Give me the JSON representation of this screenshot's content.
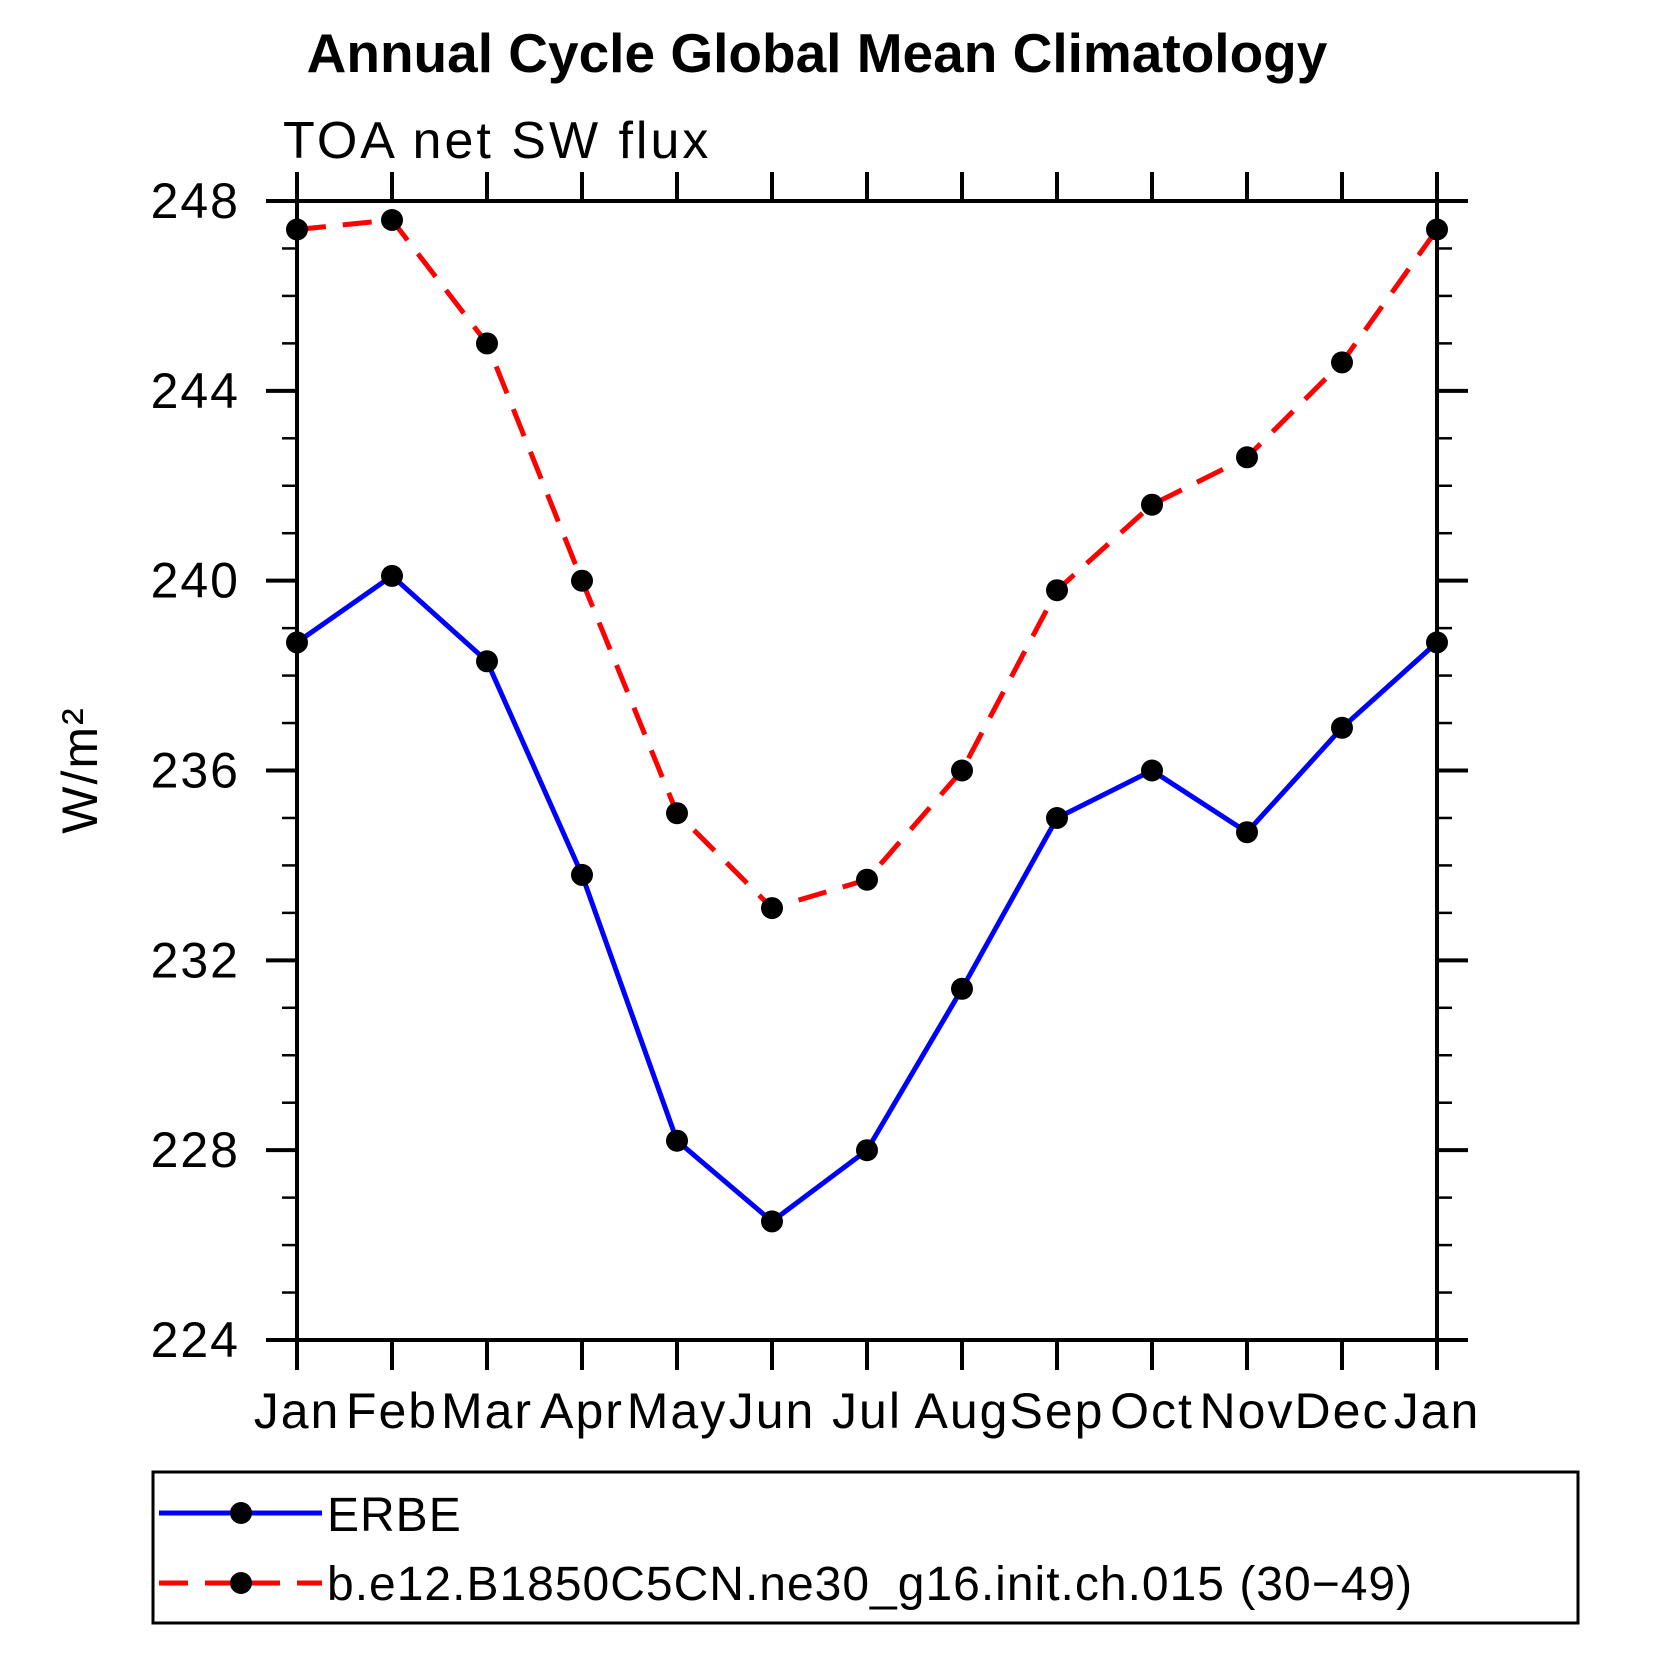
{
  "page": {
    "background": "#ffffff",
    "text_color": "#000000"
  },
  "chart_data": {
    "type": "line",
    "title": "Annual Cycle Global Mean Climatology",
    "subtitle": "TOA net SW flux",
    "xlabel": "",
    "ylabel": "W/m²",
    "categories": [
      "Jan",
      "Feb",
      "Mar",
      "Apr",
      "May",
      "Jun",
      "Jul",
      "Aug",
      "Sep",
      "Oct",
      "Nov",
      "Dec",
      "Jan"
    ],
    "ylim": [
      224,
      248
    ],
    "ymajor_step": 4,
    "yminor_step": 1,
    "grid": false,
    "legend_position": "bottom",
    "frame_color": "#000000",
    "series": [
      {
        "name": "ERBE",
        "color": "#0000ff",
        "line_style": "solid",
        "marker": "circle",
        "marker_color": "#000000",
        "values": [
          238.7,
          240.1,
          238.3,
          233.8,
          228.2,
          226.5,
          228.0,
          231.4,
          235.0,
          236.0,
          234.7,
          236.9,
          238.7
        ]
      },
      {
        "name": "b.e12.B1850C5CN.ne30_g16.init.ch.015 (30−49)",
        "color": "#ff0000",
        "line_style": "dashed",
        "marker": "circle",
        "marker_color": "#000000",
        "values": [
          247.4,
          247.6,
          245.0,
          240.0,
          235.1,
          233.1,
          233.7,
          236.0,
          239.8,
          241.6,
          242.6,
          244.6,
          247.4
        ]
      }
    ]
  }
}
